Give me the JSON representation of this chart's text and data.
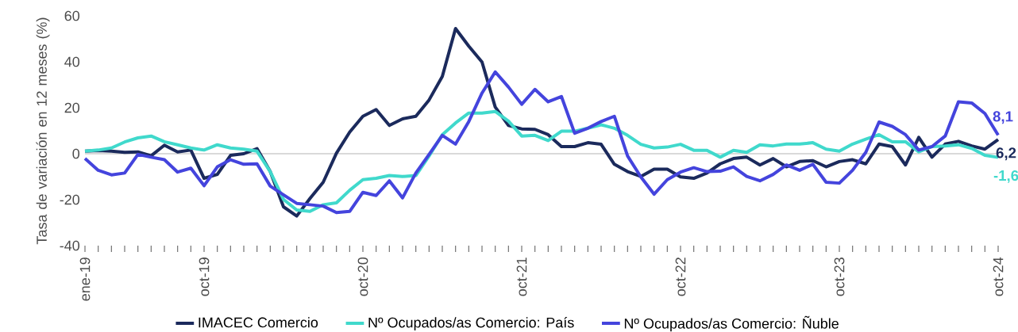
{
  "chart_data": {
    "type": "line",
    "ylabel": "Tasa de variación en 12 meses (%)",
    "categories": [
      "ene-19",
      null,
      null,
      null,
      null,
      null,
      null,
      null,
      null,
      "oct-19",
      null,
      null,
      null,
      null,
      null,
      null,
      null,
      null,
      null,
      null,
      null,
      "oct-20",
      null,
      null,
      null,
      null,
      null,
      null,
      null,
      null,
      null,
      null,
      null,
      "oct-21",
      null,
      null,
      null,
      null,
      null,
      null,
      null,
      null,
      null,
      null,
      null,
      "oct-22",
      null,
      null,
      null,
      null,
      null,
      null,
      null,
      null,
      null,
      null,
      null,
      "oct-23",
      null,
      null,
      null,
      null,
      null,
      null,
      null,
      null,
      null,
      null,
      null,
      "oct-24"
    ],
    "series": [
      {
        "name": "IMACEC Comercio",
        "color": "#1b2a5c",
        "values": [
          1.1,
          1.4,
          1.1,
          0.6,
          0.8,
          -0.9,
          3.7,
          0.8,
          1.6,
          -10.7,
          -9,
          -0.7,
          0,
          2.2,
          -7.8,
          -23.1,
          -27.1,
          -19.5,
          -12.4,
          0.2,
          9.4,
          16.3,
          19.2,
          12.3,
          15.2,
          16.3,
          23.4,
          33.6,
          54.5,
          46.8,
          39.9,
          20.3,
          12.3,
          10.8,
          10.6,
          8.3,
          3.1,
          3.1,
          4.8,
          4.1,
          -4.6,
          -7.8,
          -9.9,
          -6.7,
          -6.7,
          -10.1,
          -10.7,
          -8.4,
          -4.4,
          -2.1,
          -1.5,
          -4.9,
          -2.1,
          -5.7,
          -3.4,
          -3,
          -5.7,
          -3.4,
          -2.6,
          -4.4,
          4.2,
          3.1,
          -4.9,
          7.1,
          -1.5,
          4.2,
          5.4,
          3.4,
          2,
          6.2
        ],
        "value_labels": [
          null,
          null,
          null,
          null,
          null,
          null,
          null,
          null,
          null,
          null,
          null,
          null,
          null,
          null,
          null,
          null,
          null,
          null,
          null,
          null,
          null,
          null,
          null,
          null,
          null,
          null,
          null,
          null,
          null,
          null,
          null,
          null,
          null,
          null,
          null,
          null,
          null,
          null,
          null,
          null,
          null,
          null,
          null,
          null,
          null,
          null,
          null,
          null,
          null,
          null,
          null,
          null,
          null,
          null,
          null,
          null,
          null,
          null,
          null,
          null,
          null,
          null,
          null,
          null,
          null,
          null,
          null,
          null,
          null,
          "6,2"
        ]
      },
      {
        "name": "Nº Ocupados/as Comercio: País",
        "color": "#40d9cc",
        "values": [
          1.1,
          1.6,
          2.5,
          5.1,
          6.9,
          7.7,
          5.2,
          3.9,
          2.5,
          1.6,
          3.9,
          2.5,
          2,
          1.1,
          -7.8,
          -19.9,
          -24.5,
          -25.1,
          -22.2,
          -21.4,
          -15.9,
          -11.3,
          -10.7,
          -9.5,
          -9.9,
          -9.5,
          -1,
          8.3,
          13.4,
          17.7,
          17.7,
          18.4,
          14.2,
          7.7,
          8,
          5.7,
          9.8,
          9.8,
          11.1,
          12.6,
          11.1,
          8,
          4.1,
          2.5,
          2.9,
          4.1,
          1.5,
          1.5,
          -1.5,
          1.5,
          0.6,
          3.9,
          3.4,
          4.2,
          4.2,
          4.8,
          2,
          1.1,
          4.2,
          6.3,
          8.3,
          5.2,
          5.2,
          0.8,
          3.1,
          3.4,
          3.9,
          2.3,
          -0.7,
          -1.6
        ],
        "value_labels": [
          null,
          null,
          null,
          null,
          null,
          null,
          null,
          null,
          null,
          null,
          null,
          null,
          null,
          null,
          null,
          null,
          null,
          null,
          null,
          null,
          null,
          null,
          null,
          null,
          null,
          null,
          null,
          null,
          null,
          null,
          null,
          null,
          null,
          null,
          null,
          null,
          null,
          null,
          null,
          null,
          null,
          null,
          null,
          null,
          null,
          null,
          null,
          null,
          null,
          null,
          null,
          null,
          null,
          null,
          null,
          null,
          null,
          null,
          null,
          null,
          null,
          null,
          null,
          null,
          null,
          null,
          null,
          null,
          null,
          "-1,6"
        ]
      },
      {
        "name": "Nº Ocupados/as Comercio: Ñuble",
        "color": "#4444dd",
        "values": [
          -2.1,
          -7.2,
          -9.2,
          -8.4,
          -0.3,
          -1.5,
          -2.6,
          -8,
          -6.3,
          -13.9,
          -5.7,
          -2.6,
          -4.6,
          -4.4,
          -14.1,
          -17.9,
          -21.6,
          -22.2,
          -22.8,
          -25.6,
          -25.1,
          -16.8,
          -18.2,
          -11.8,
          -19.2,
          -8.4,
          -0.3,
          8,
          4.2,
          14,
          26.4,
          35.6,
          29,
          21.5,
          28,
          22.6,
          24.9,
          8.9,
          11.1,
          14,
          16.3,
          -1,
          -10.1,
          -17.6,
          -11.3,
          -8,
          -6.1,
          -7.8,
          -7.6,
          -5.7,
          -9.9,
          -11.8,
          -9,
          -4.9,
          -7.2,
          -4.6,
          -12.4,
          -12.8,
          -7.2,
          0.6,
          13.8,
          11.9,
          8.3,
          1.6,
          3.1,
          7.7,
          22.6,
          22.1,
          17.5,
          8.1
        ],
        "value_labels": [
          null,
          null,
          null,
          null,
          null,
          null,
          null,
          null,
          null,
          null,
          null,
          null,
          null,
          null,
          null,
          null,
          null,
          null,
          null,
          null,
          null,
          null,
          null,
          null,
          null,
          null,
          null,
          null,
          null,
          null,
          null,
          null,
          null,
          null,
          null,
          null,
          null,
          null,
          null,
          null,
          null,
          null,
          null,
          null,
          null,
          null,
          null,
          null,
          null,
          null,
          null,
          null,
          null,
          null,
          null,
          null,
          null,
          null,
          null,
          null,
          null,
          null,
          null,
          null,
          null,
          null,
          null,
          null,
          null,
          "8,1"
        ]
      }
    ],
    "ylim": [
      -40,
      60
    ],
    "yticks": [
      -40,
      -20,
      0,
      20,
      40,
      60
    ],
    "ref_lines": [
      {
        "axis": "y",
        "value": 0,
        "color": "#d9d9d9"
      }
    ],
    "legend": "bottom",
    "marker": "none",
    "line_style": "solid"
  }
}
